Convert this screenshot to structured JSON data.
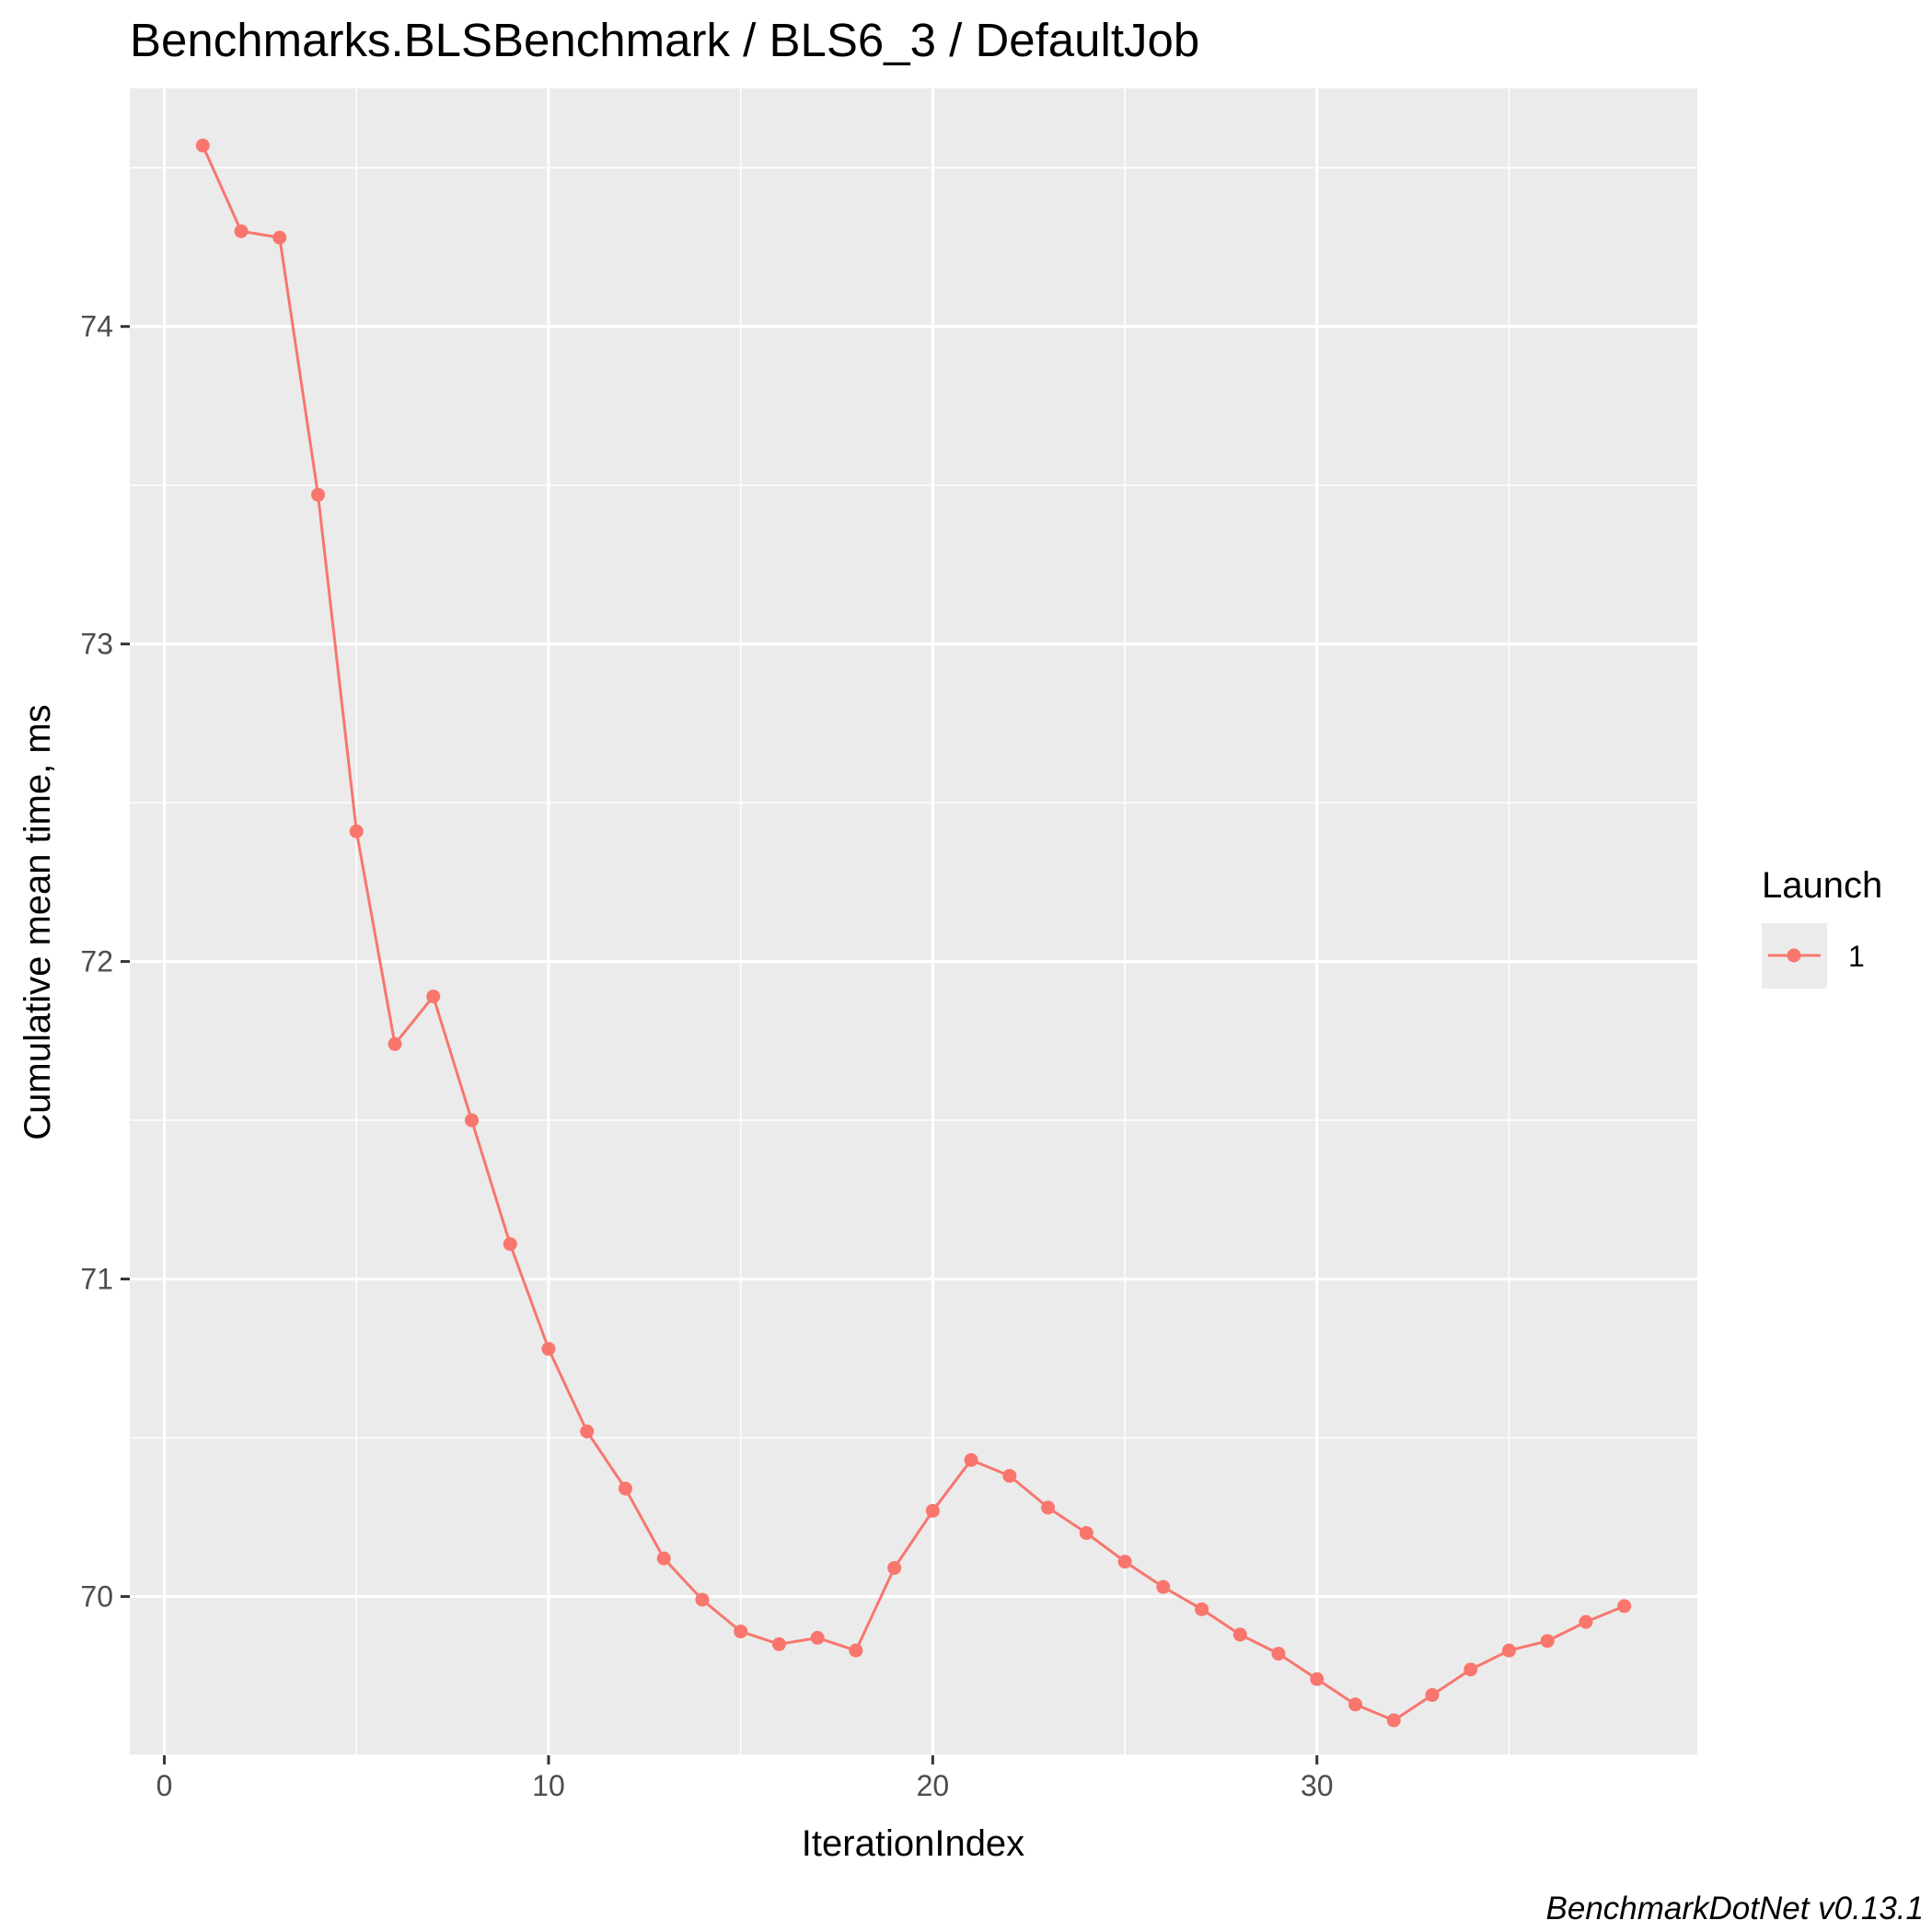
{
  "chart_data": {
    "type": "line",
    "title": "Benchmarks.BLSBenchmark / BLS6_3 / DefaultJob",
    "xlabel": "IterationIndex",
    "ylabel": "Cumulative mean time, ms",
    "xlim": [
      -0.9,
      39.9
    ],
    "ylim": [
      69.5,
      74.75
    ],
    "x_ticks": [
      0,
      10,
      20,
      30
    ],
    "y_ticks": [
      70,
      71,
      72,
      73,
      74
    ],
    "grid": true,
    "legend": {
      "title": "Launch",
      "position": "right"
    },
    "series": [
      {
        "name": "1",
        "color": "#F8766D",
        "x": [
          1,
          2,
          3,
          4,
          5,
          6,
          7,
          8,
          9,
          10,
          11,
          12,
          13,
          14,
          15,
          16,
          17,
          18,
          19,
          20,
          21,
          22,
          23,
          24,
          25,
          26,
          27,
          28,
          29,
          30,
          31,
          32,
          33,
          34,
          35,
          36,
          37,
          38
        ],
        "y": [
          74.57,
          74.3,
          74.28,
          73.47,
          72.41,
          71.74,
          71.89,
          71.5,
          71.11,
          70.78,
          70.52,
          70.34,
          70.12,
          69.99,
          69.89,
          69.85,
          69.87,
          69.83,
          70.09,
          70.27,
          70.43,
          70.38,
          70.28,
          70.2,
          70.11,
          70.03,
          69.96,
          69.88,
          69.82,
          69.74,
          69.66,
          69.61,
          69.69,
          69.77,
          69.83,
          69.86,
          69.92,
          69.97
        ]
      }
    ],
    "caption": "BenchmarkDotNet v0.13.1"
  },
  "colors": {
    "panel_background": "#EBEBEB",
    "grid_major": "#FFFFFF",
    "series_1": "#F8766D"
  }
}
